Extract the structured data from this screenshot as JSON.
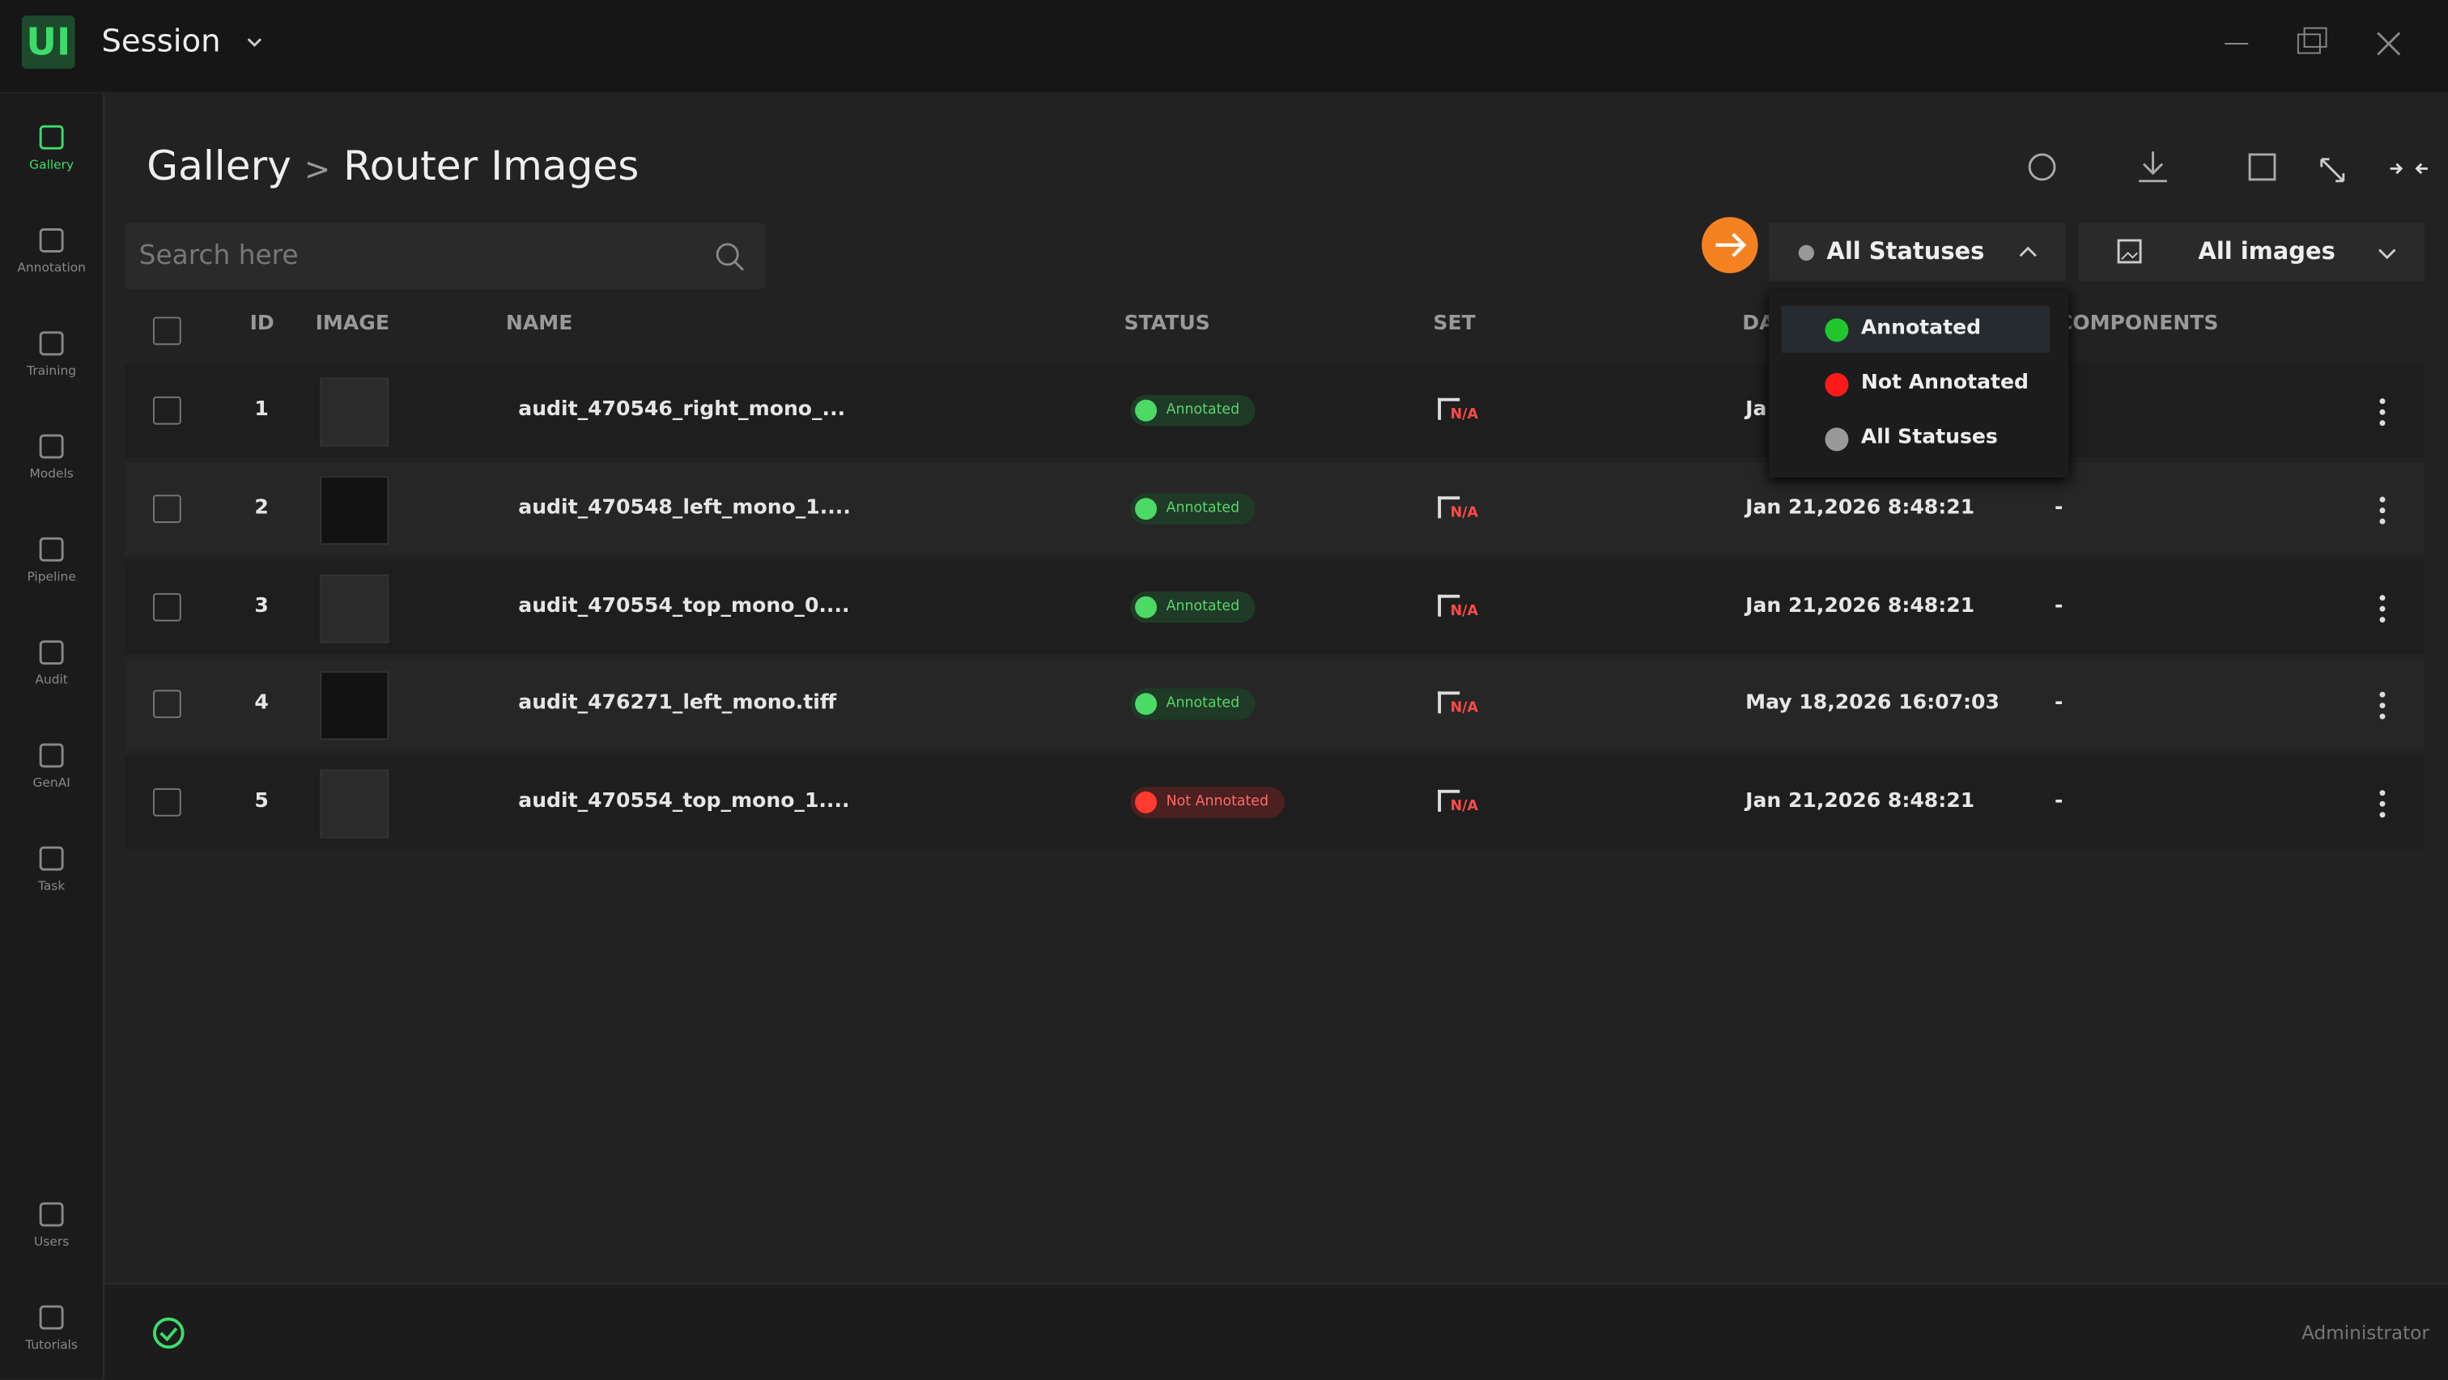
{
  "header": {
    "logo": "UI",
    "session": "Session"
  },
  "sidebar": [
    "Gallery",
    "Annotation",
    "Training",
    "Models",
    "Pipeline",
    "Audit",
    "GenAI",
    "Task"
  ],
  "sidebar_bottom": [
    "Users",
    "Tutorials"
  ],
  "breadcrumb": {
    "root": "Gallery",
    "separator": ">",
    "current": "Router Images"
  },
  "search_placeholder": "Search here",
  "status_filter": "All Statuses",
  "image_filter": "All images",
  "status_options": [
    "Annotated",
    "Not Annotated",
    "All Statuses"
  ],
  "table": {
    "columns": [
      "ID",
      "IMAGE",
      "NAME",
      "STATUS",
      "SET",
      "DATE",
      "COMPONENTS"
    ],
    "set_label": "N/A",
    "rows": [
      [
        "1",
        "audit_470546_right_mono_...",
        "Annotated",
        "Ja",
        "-"
      ],
      [
        "2",
        "audit_470548_left_mono_1....",
        "Annotated",
        "Jan 21,2026 8:48:21",
        "-"
      ],
      [
        "3",
        "audit_470554_top_mono_0....",
        "Annotated",
        "Jan 21,2026 8:48:21",
        "-"
      ],
      [
        "4",
        "audit_476271_left_mono.tiff",
        "Annotated",
        "May 18,2026 16:07:03",
        "-"
      ],
      [
        "5",
        "audit_470554_top_mono_1....",
        "Not Annotated",
        "Jan 21,2026 8:48:21",
        "-"
      ]
    ]
  },
  "footer": {
    "user": "Administrator"
  }
}
